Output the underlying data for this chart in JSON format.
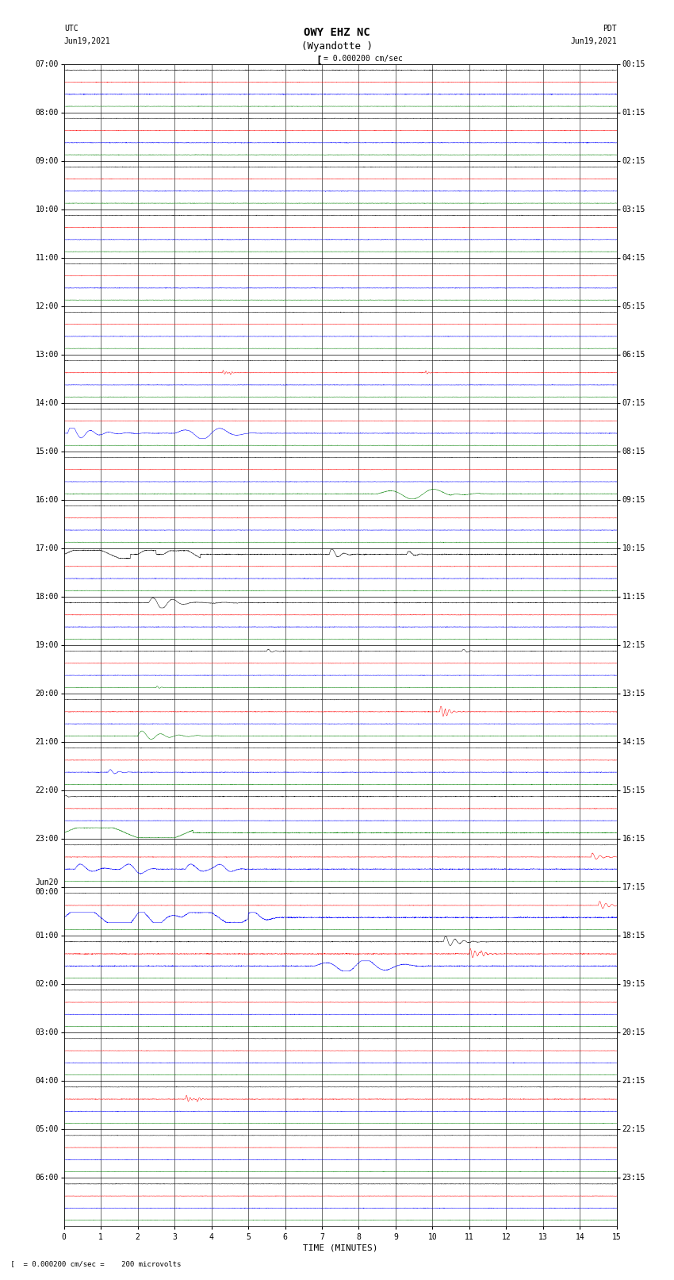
{
  "title_line1": "OWY EHZ NC",
  "title_line2": "(Wyandotte )",
  "scale_label": "= 0.000200 cm/sec",
  "left_header": "UTC",
  "left_date": "Jun19,2021",
  "right_header": "PDT",
  "right_date": "Jun19,2021",
  "xlabel": "TIME (MINUTES)",
  "bottom_note": "= 0.000200 cm/sec =    200 microvolts",
  "utc_labels": [
    "07:00",
    "08:00",
    "09:00",
    "10:00",
    "11:00",
    "12:00",
    "13:00",
    "14:00",
    "15:00",
    "16:00",
    "17:00",
    "18:00",
    "19:00",
    "20:00",
    "21:00",
    "22:00",
    "23:00",
    "Jun20\n00:00",
    "01:00",
    "02:00",
    "03:00",
    "04:00",
    "05:00",
    "06:00"
  ],
  "pdt_labels": [
    "00:15",
    "01:15",
    "02:15",
    "03:15",
    "04:15",
    "05:15",
    "06:15",
    "07:15",
    "08:15",
    "09:15",
    "10:15",
    "11:15",
    "12:15",
    "13:15",
    "14:15",
    "15:15",
    "16:15",
    "17:15",
    "18:15",
    "19:15",
    "20:15",
    "21:15",
    "22:15",
    "23:15"
  ],
  "n_rows": 24,
  "n_minutes": 15,
  "background_color": "#ffffff",
  "trace_colors": [
    "#000000",
    "#ff0000",
    "#0000ff",
    "#008000"
  ],
  "title_fontsize": 10,
  "label_fontsize": 7,
  "tick_fontsize": 7
}
